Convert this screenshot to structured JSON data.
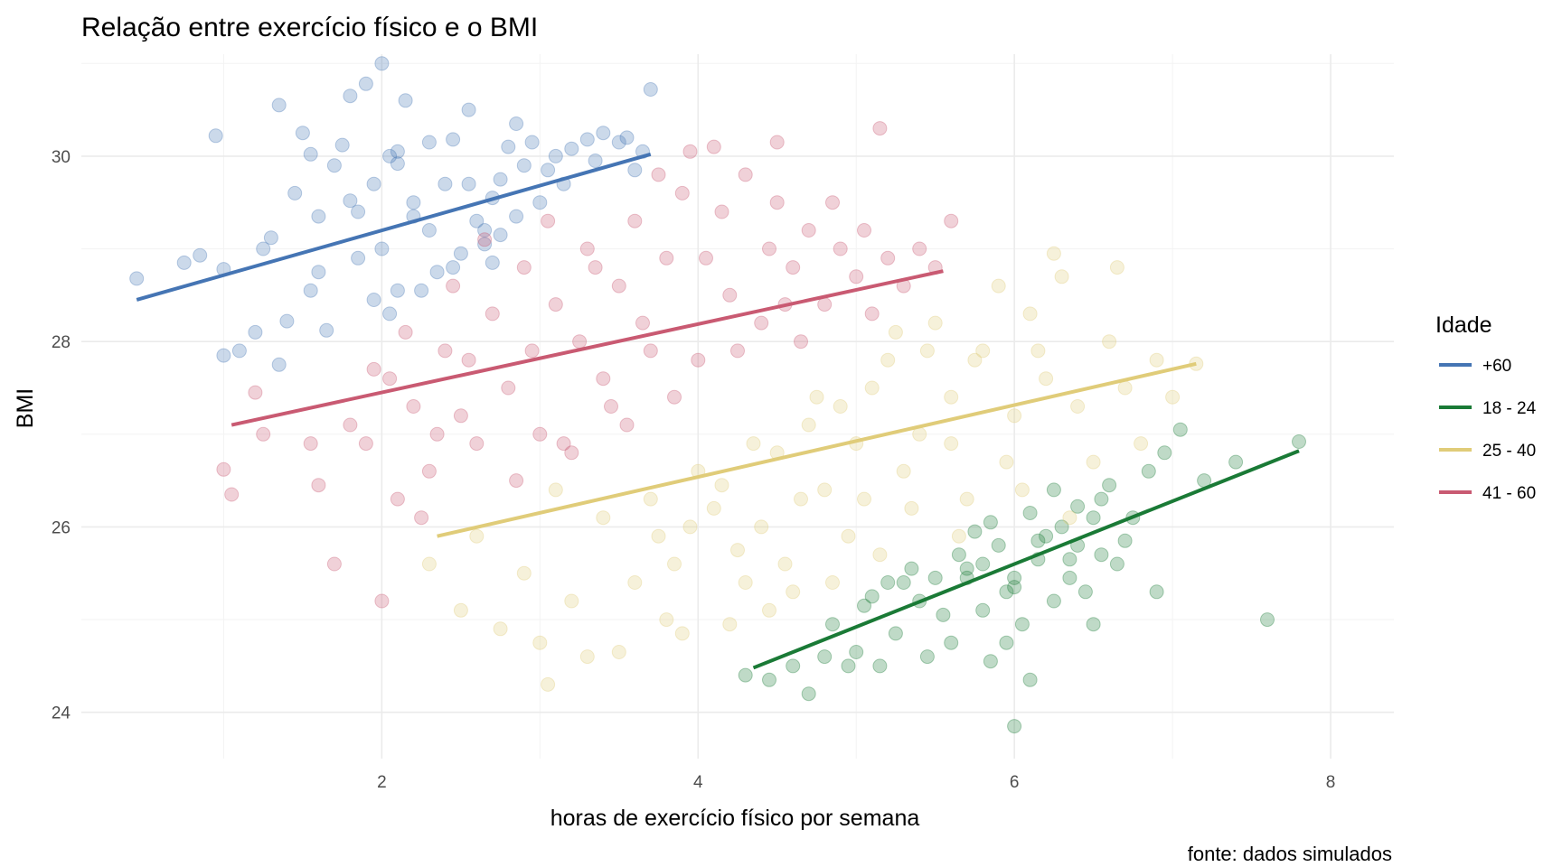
{
  "chart_data": {
    "type": "scatter",
    "title": "Relação entre exercício físico e o BMI",
    "xlabel": "horas de exercício físico por semana",
    "ylabel": "BMI",
    "caption": "fonte: dados simulados",
    "xlim": [
      0.1,
      8.4
    ],
    "ylim": [
      23.5,
      31.1
    ],
    "x_ticks": [
      2,
      4,
      6,
      8
    ],
    "y_ticks": [
      24,
      26,
      28,
      30
    ],
    "grid": true,
    "legend": {
      "title": "Idade",
      "position": "right"
    },
    "series": [
      {
        "name": "+60",
        "color": "#4575b4",
        "trend": {
          "x": [
            0.45,
            3.7
          ],
          "y": [
            28.45,
            30.02
          ]
        },
        "points": [
          [
            0.45,
            28.68
          ],
          [
            0.75,
            28.85
          ],
          [
            0.85,
            28.93
          ],
          [
            0.95,
            30.22
          ],
          [
            1.0,
            28.78
          ],
          [
            1.0,
            27.85
          ],
          [
            1.1,
            27.9
          ],
          [
            1.2,
            28.1
          ],
          [
            1.3,
            29.12
          ],
          [
            1.35,
            30.55
          ],
          [
            1.35,
            27.75
          ],
          [
            1.4,
            28.22
          ],
          [
            1.45,
            29.6
          ],
          [
            1.5,
            30.25
          ],
          [
            1.55,
            28.55
          ],
          [
            1.55,
            30.02
          ],
          [
            1.6,
            29.35
          ],
          [
            1.65,
            28.12
          ],
          [
            1.7,
            29.9
          ],
          [
            1.75,
            30.12
          ],
          [
            1.8,
            29.52
          ],
          [
            1.8,
            30.65
          ],
          [
            1.85,
            28.9
          ],
          [
            1.9,
            30.78
          ],
          [
            1.95,
            29.7
          ],
          [
            2.0,
            29.0
          ],
          [
            2.0,
            31.0
          ],
          [
            2.05,
            30.0
          ],
          [
            2.05,
            28.3
          ],
          [
            2.1,
            28.55
          ],
          [
            2.1,
            29.92
          ],
          [
            2.15,
            30.6
          ],
          [
            2.2,
            29.5
          ],
          [
            2.25,
            28.55
          ],
          [
            2.3,
            30.15
          ],
          [
            2.35,
            28.75
          ],
          [
            2.4,
            29.7
          ],
          [
            2.45,
            30.18
          ],
          [
            2.5,
            28.95
          ],
          [
            2.55,
            29.7
          ],
          [
            2.6,
            29.3
          ],
          [
            2.65,
            29.05
          ],
          [
            2.7,
            28.85
          ],
          [
            2.75,
            29.75
          ],
          [
            2.8,
            30.1
          ],
          [
            2.85,
            29.35
          ],
          [
            2.9,
            29.9
          ],
          [
            3.0,
            29.5
          ],
          [
            3.05,
            29.85
          ],
          [
            3.1,
            30.0
          ],
          [
            3.15,
            29.7
          ],
          [
            3.2,
            30.08
          ],
          [
            3.3,
            30.18
          ],
          [
            3.35,
            29.95
          ],
          [
            3.4,
            30.25
          ],
          [
            3.5,
            30.15
          ],
          [
            3.55,
            30.2
          ],
          [
            3.6,
            29.85
          ],
          [
            3.65,
            30.05
          ],
          [
            3.7,
            30.72
          ],
          [
            1.25,
            29.0
          ],
          [
            1.6,
            28.75
          ],
          [
            1.95,
            28.45
          ],
          [
            2.3,
            29.2
          ],
          [
            2.7,
            29.55
          ],
          [
            2.95,
            30.15
          ],
          [
            2.55,
            30.5
          ],
          [
            2.85,
            30.35
          ],
          [
            2.2,
            29.35
          ],
          [
            2.65,
            29.2
          ],
          [
            2.75,
            29.15
          ],
          [
            1.85,
            29.4
          ],
          [
            2.45,
            28.8
          ],
          [
            2.1,
            30.05
          ]
        ]
      },
      {
        "name": "18 - 24",
        "color": "#1a7a36",
        "trend": {
          "x": [
            4.35,
            7.8
          ],
          "y": [
            24.48,
            26.82
          ]
        },
        "points": [
          [
            4.3,
            24.4
          ],
          [
            4.45,
            24.35
          ],
          [
            4.6,
            24.5
          ],
          [
            4.7,
            24.2
          ],
          [
            4.8,
            24.6
          ],
          [
            4.85,
            24.95
          ],
          [
            4.95,
            24.5
          ],
          [
            5.0,
            24.65
          ],
          [
            5.05,
            25.15
          ],
          [
            5.1,
            25.25
          ],
          [
            5.15,
            24.5
          ],
          [
            5.2,
            25.4
          ],
          [
            5.25,
            24.85
          ],
          [
            5.3,
            25.4
          ],
          [
            5.35,
            25.55
          ],
          [
            5.4,
            25.2
          ],
          [
            5.5,
            25.45
          ],
          [
            5.55,
            25.05
          ],
          [
            5.6,
            24.75
          ],
          [
            5.65,
            25.7
          ],
          [
            5.7,
            25.45
          ],
          [
            5.75,
            25.95
          ],
          [
            5.8,
            25.1
          ],
          [
            5.85,
            24.55
          ],
          [
            5.9,
            25.8
          ],
          [
            5.95,
            25.3
          ],
          [
            6.0,
            23.85
          ],
          [
            6.0,
            25.35
          ],
          [
            6.05,
            24.95
          ],
          [
            6.1,
            24.35
          ],
          [
            6.15,
            25.65
          ],
          [
            6.2,
            25.9
          ],
          [
            6.25,
            26.4
          ],
          [
            6.3,
            26.0
          ],
          [
            6.35,
            25.45
          ],
          [
            6.4,
            26.22
          ],
          [
            6.45,
            25.3
          ],
          [
            6.5,
            24.95
          ],
          [
            6.55,
            25.7
          ],
          [
            6.6,
            26.45
          ],
          [
            6.7,
            25.85
          ],
          [
            6.75,
            26.1
          ],
          [
            6.85,
            26.6
          ],
          [
            6.9,
            25.3
          ],
          [
            6.95,
            26.8
          ],
          [
            7.05,
            27.05
          ],
          [
            7.2,
            26.5
          ],
          [
            7.4,
            26.7
          ],
          [
            7.6,
            25.0
          ],
          [
            7.8,
            26.92
          ],
          [
            5.7,
            25.55
          ],
          [
            5.85,
            26.05
          ],
          [
            6.0,
            25.45
          ],
          [
            6.35,
            25.65
          ],
          [
            6.55,
            26.3
          ],
          [
            6.25,
            25.2
          ],
          [
            6.4,
            25.8
          ],
          [
            5.45,
            24.6
          ],
          [
            5.8,
            25.6
          ],
          [
            6.15,
            25.85
          ],
          [
            6.65,
            25.6
          ],
          [
            6.1,
            26.15
          ],
          [
            5.95,
            24.75
          ],
          [
            6.5,
            26.1
          ]
        ]
      },
      {
        "name": "25 - 40",
        "color": "#e0cc79",
        "trend": {
          "x": [
            2.35,
            7.15
          ],
          "y": [
            25.9,
            27.76
          ]
        },
        "points": [
          [
            2.3,
            25.6
          ],
          [
            2.5,
            25.1
          ],
          [
            2.6,
            25.9
          ],
          [
            2.75,
            24.9
          ],
          [
            2.9,
            25.5
          ],
          [
            3.0,
            24.75
          ],
          [
            3.05,
            24.3
          ],
          [
            3.1,
            26.4
          ],
          [
            3.2,
            25.2
          ],
          [
            3.3,
            24.6
          ],
          [
            3.4,
            26.1
          ],
          [
            3.5,
            24.65
          ],
          [
            3.6,
            25.4
          ],
          [
            3.7,
            26.3
          ],
          [
            3.8,
            25.0
          ],
          [
            3.9,
            24.85
          ],
          [
            4.0,
            26.6
          ],
          [
            4.1,
            26.2
          ],
          [
            4.2,
            24.95
          ],
          [
            4.3,
            25.4
          ],
          [
            4.4,
            26.0
          ],
          [
            4.5,
            26.8
          ],
          [
            4.6,
            25.3
          ],
          [
            4.7,
            27.1
          ],
          [
            4.8,
            26.4
          ],
          [
            4.9,
            27.3
          ],
          [
            5.0,
            26.9
          ],
          [
            5.1,
            27.5
          ],
          [
            5.2,
            27.8
          ],
          [
            5.3,
            26.6
          ],
          [
            5.4,
            27.0
          ],
          [
            5.5,
            28.2
          ],
          [
            5.6,
            27.4
          ],
          [
            5.7,
            26.3
          ],
          [
            5.8,
            27.9
          ],
          [
            5.9,
            28.6
          ],
          [
            6.0,
            27.2
          ],
          [
            6.1,
            28.3
          ],
          [
            6.2,
            27.6
          ],
          [
            6.3,
            28.7
          ],
          [
            6.4,
            27.3
          ],
          [
            6.5,
            26.7
          ],
          [
            6.6,
            28.0
          ],
          [
            6.7,
            27.5
          ],
          [
            6.8,
            26.9
          ],
          [
            6.9,
            27.8
          ],
          [
            7.0,
            27.4
          ],
          [
            7.15,
            27.76
          ],
          [
            6.65,
            28.8
          ],
          [
            6.25,
            28.95
          ],
          [
            5.35,
            26.2
          ],
          [
            4.95,
            25.9
          ],
          [
            4.25,
            25.75
          ],
          [
            3.85,
            25.6
          ],
          [
            4.55,
            25.6
          ],
          [
            5.05,
            26.3
          ],
          [
            5.6,
            26.9
          ],
          [
            6.05,
            26.4
          ],
          [
            4.75,
            27.4
          ],
          [
            5.25,
            28.1
          ],
          [
            5.75,
            27.8
          ],
          [
            4.35,
            26.9
          ],
          [
            4.65,
            26.3
          ],
          [
            5.15,
            25.7
          ],
          [
            3.95,
            26.0
          ],
          [
            4.85,
            25.4
          ],
          [
            5.45,
            27.9
          ],
          [
            6.35,
            26.1
          ],
          [
            5.95,
            26.7
          ],
          [
            4.45,
            25.1
          ],
          [
            3.75,
            25.9
          ],
          [
            4.15,
            26.45
          ],
          [
            5.65,
            25.9
          ],
          [
            6.15,
            27.9
          ]
        ]
      },
      {
        "name": "41 - 60",
        "color": "#c95a72",
        "trend": {
          "x": [
            1.05,
            5.55
          ],
          "y": [
            27.1,
            28.76
          ]
        },
        "points": [
          [
            1.0,
            26.62
          ],
          [
            1.05,
            26.35
          ],
          [
            1.2,
            27.45
          ],
          [
            1.6,
            26.45
          ],
          [
            1.7,
            25.6
          ],
          [
            1.8,
            27.1
          ],
          [
            1.9,
            26.9
          ],
          [
            2.05,
            27.6
          ],
          [
            2.1,
            26.3
          ],
          [
            2.15,
            28.1
          ],
          [
            2.2,
            27.3
          ],
          [
            2.3,
            26.6
          ],
          [
            2.4,
            27.9
          ],
          [
            2.5,
            27.2
          ],
          [
            2.6,
            26.9
          ],
          [
            2.7,
            28.3
          ],
          [
            2.8,
            27.5
          ],
          [
            2.9,
            28.8
          ],
          [
            3.0,
            27.0
          ],
          [
            3.1,
            28.4
          ],
          [
            3.2,
            26.8
          ],
          [
            3.3,
            29.0
          ],
          [
            3.4,
            27.6
          ],
          [
            3.5,
            28.6
          ],
          [
            3.6,
            29.3
          ],
          [
            3.7,
            27.9
          ],
          [
            3.8,
            28.9
          ],
          [
            3.9,
            29.6
          ],
          [
            4.0,
            27.8
          ],
          [
            4.1,
            30.1
          ],
          [
            4.2,
            28.5
          ],
          [
            4.3,
            29.8
          ],
          [
            4.4,
            28.2
          ],
          [
            4.5,
            29.5
          ],
          [
            4.6,
            28.8
          ],
          [
            4.7,
            29.2
          ],
          [
            4.8,
            28.4
          ],
          [
            4.9,
            29.0
          ],
          [
            5.0,
            28.7
          ],
          [
            5.1,
            28.3
          ],
          [
            5.2,
            28.9
          ],
          [
            5.3,
            28.6
          ],
          [
            5.4,
            29.0
          ],
          [
            5.5,
            28.8
          ],
          [
            5.6,
            29.3
          ],
          [
            5.15,
            30.3
          ],
          [
            4.5,
            30.15
          ],
          [
            3.95,
            30.05
          ],
          [
            1.25,
            27.0
          ],
          [
            1.55,
            26.9
          ],
          [
            2.0,
            25.2
          ],
          [
            2.25,
            26.1
          ],
          [
            2.45,
            28.6
          ],
          [
            2.65,
            29.1
          ],
          [
            2.85,
            26.5
          ],
          [
            3.05,
            29.3
          ],
          [
            3.25,
            28.0
          ],
          [
            3.45,
            27.3
          ],
          [
            3.65,
            28.2
          ],
          [
            3.85,
            27.4
          ],
          [
            4.05,
            28.9
          ],
          [
            4.25,
            27.9
          ],
          [
            4.45,
            29.0
          ],
          [
            4.65,
            28.0
          ],
          [
            4.85,
            29.5
          ],
          [
            5.05,
            29.2
          ],
          [
            2.55,
            27.8
          ],
          [
            2.95,
            27.9
          ],
          [
            3.35,
            28.8
          ],
          [
            3.75,
            29.8
          ],
          [
            4.15,
            29.4
          ],
          [
            4.55,
            28.4
          ],
          [
            3.15,
            26.9
          ],
          [
            2.35,
            27.0
          ],
          [
            1.95,
            27.7
          ],
          [
            3.55,
            27.1
          ]
        ]
      }
    ]
  }
}
